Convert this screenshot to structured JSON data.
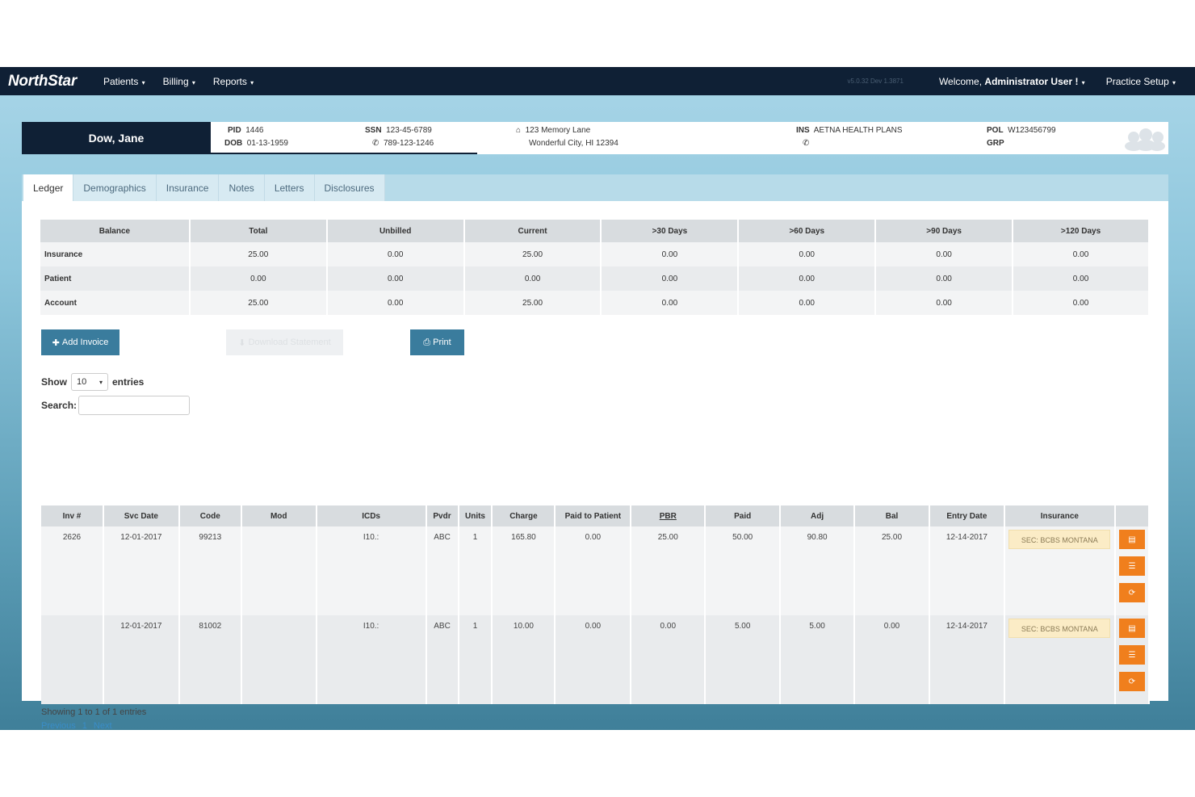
{
  "navbar": {
    "brand": "NorthStar",
    "menus": [
      "Patients",
      "Billing",
      "Reports"
    ],
    "version": "v5.0.32 Dev 1.3871",
    "welcome_prefix": "Welcome,",
    "welcome_user": "Administrator User !",
    "practice_setup": "Practice Setup"
  },
  "patient": {
    "name": "Dow, Jane",
    "pid_label": "PID",
    "pid": "1446",
    "dob_label": "DOB",
    "dob": "01-13-1959",
    "ssn_label": "SSN",
    "ssn": "123-45-6789",
    "phone": "789-123-1246",
    "address1": "123 Memory Lane",
    "address2": "Wonderful City, HI 12394",
    "ins_label": "INS",
    "ins": "AETNA HEALTH PLANS",
    "pol_label": "POL",
    "pol": "W123456799",
    "grp_label": "GRP"
  },
  "tabs": [
    "Ledger",
    "Demographics",
    "Insurance",
    "Notes",
    "Letters",
    "Disclosures"
  ],
  "summary": {
    "headers": [
      "Balance",
      "Total",
      "Unbilled",
      "Current",
      ">30 Days",
      ">60 Days",
      ">90 Days",
      ">120 Days"
    ],
    "rows": [
      [
        "Insurance",
        "25.00",
        "0.00",
        "25.00",
        "0.00",
        "0.00",
        "0.00",
        "0.00"
      ],
      [
        "Patient",
        "0.00",
        "0.00",
        "0.00",
        "0.00",
        "0.00",
        "0.00",
        "0.00"
      ],
      [
        "Account",
        "25.00",
        "0.00",
        "25.00",
        "0.00",
        "0.00",
        "0.00",
        "0.00"
      ]
    ]
  },
  "buttons": {
    "add_invoice": "Add Invoice",
    "download_statement": "Download Statement",
    "print": "Print"
  },
  "show": {
    "prefix": "Show",
    "value": "10",
    "suffix": "entries"
  },
  "search": {
    "label": "Search:",
    "value": ""
  },
  "ledger": {
    "headers": [
      "Inv #",
      "Svc Date",
      "Code",
      "Mod",
      "ICDs",
      "Pvdr",
      "Units",
      "Charge",
      "Paid to Patient",
      "PBR",
      "Paid",
      "Adj",
      "Bal",
      "Entry Date",
      "Insurance",
      ""
    ],
    "rows": [
      [
        "2626",
        "12-01-2017",
        "99213",
        "",
        "I10.:",
        "ABC",
        "1",
        "165.80",
        "0.00",
        "25.00",
        "50.00",
        "90.80",
        "25.00",
        "12-14-2017",
        "SEC: BCBS MONTANA"
      ],
      [
        "",
        "12-01-2017",
        "81002",
        "",
        "I10.:",
        "ABC",
        "1",
        "10.00",
        "0.00",
        "0.00",
        "5.00",
        "5.00",
        "0.00",
        "12-14-2017",
        "SEC: BCBS MONTANA"
      ]
    ]
  },
  "footer": {
    "showing": "Showing 1 to 1 of 1 entries",
    "previous": "Previous",
    "page": "1",
    "next": "Next"
  },
  "colors": {
    "navbar": "#0f2035",
    "primary_button": "#3a7c9d",
    "action_button": "#f07f1d",
    "insurance_badge": "#fbecc6",
    "link": "#3a8dc8"
  }
}
